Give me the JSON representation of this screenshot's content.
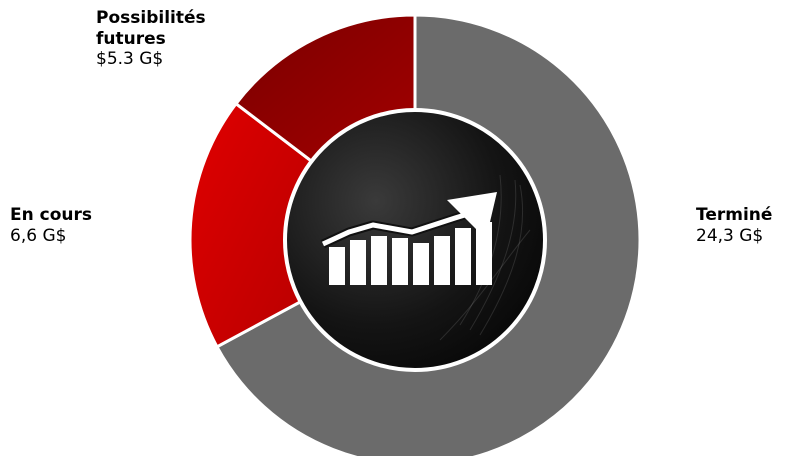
{
  "chart_data": {
    "type": "pie",
    "variant": "donut",
    "series": [
      {
        "name": "Terminé",
        "value": 24.3,
        "value_label": "24,3 G$",
        "color": "#6b6b6b"
      },
      {
        "name": "En cours",
        "value": 6.6,
        "value_label": "6,6 G$",
        "color": "#e00000"
      },
      {
        "name": "Possibilités futures",
        "value": 5.3,
        "value_label": "$5.3 G$",
        "color": "#990000"
      }
    ],
    "legend": "labels-outside",
    "center_icon": "growth-chart-arrow-icon"
  },
  "colors": {
    "background": "#ffffff",
    "center_disc": "#111111",
    "separator": "#ffffff",
    "icon": "#ffffff"
  }
}
